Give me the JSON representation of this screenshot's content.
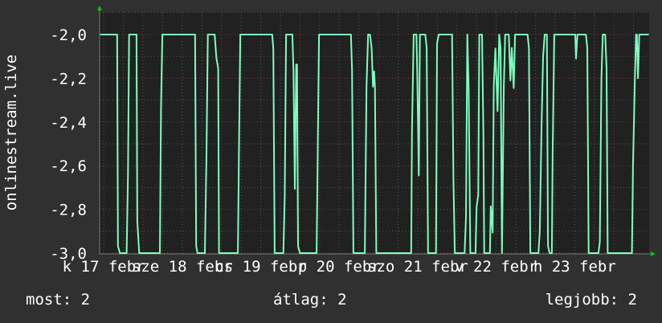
{
  "chart_data": {
    "type": "line",
    "ylabel": "onlinestream.live",
    "ylim": [
      -3.0,
      -1.92
    ],
    "yticks": [
      "-2,0",
      "-2,2",
      "-2,4",
      "-2,6",
      "-2,8",
      "-3,0"
    ],
    "ytick_values": [
      -2.0,
      -2.2,
      -2.4,
      -2.6,
      -2.8,
      -3.0
    ],
    "xlim": [
      "17 10:45",
      "24 10:50"
    ],
    "xtick_labels": [
      "k 17 febr",
      "sze 18 febr",
      "cs 19 febr",
      "p 20 febr",
      "szo 21 febr",
      "v 22 febr",
      "h 23 febr"
    ],
    "grid": true,
    "colors": {
      "line": "#7dffbe",
      "plot_bg": "#212121",
      "background": "#303030",
      "major_grid": "#8a3a3a",
      "minor_grid": "#5a5a5a",
      "axis_arrow": "#00cc00"
    },
    "series": [
      {
        "points": [
          [
            "17 11:00",
            -2
          ],
          [
            "17 16:05",
            -2
          ],
          [
            "17 16:20",
            -2.967
          ],
          [
            "17 16:55",
            -3
          ],
          [
            "17 19:00",
            -3
          ],
          [
            "17 19:25",
            -2.64
          ],
          [
            "17 19:45",
            -2
          ],
          [
            "17 22:00",
            -2
          ],
          [
            "17 22:15",
            -2.857
          ],
          [
            "17 22:50",
            -3
          ],
          [
            "18 05:10",
            -3
          ],
          [
            "18 05:30",
            -2.34
          ],
          [
            "18 05:55",
            -2
          ],
          [
            "18 15:55",
            -2
          ],
          [
            "18 16:15",
            -2.967
          ],
          [
            "18 16:40",
            -3
          ],
          [
            "18 18:55",
            -3
          ],
          [
            "18 19:25",
            -2.55
          ],
          [
            "18 19:50",
            -2
          ],
          [
            "18 21:55",
            -2
          ],
          [
            "18 22:25",
            -2.106
          ],
          [
            "18 23:00",
            -2.155
          ],
          [
            "18 23:15",
            -3
          ],
          [
            "19 05:00",
            -3
          ],
          [
            "19 05:20",
            -2.545
          ],
          [
            "19 05:45",
            -2
          ],
          [
            "19 15:30",
            -2
          ],
          [
            "19 15:50",
            -2.064
          ],
          [
            "19 16:15",
            -3
          ],
          [
            "19 18:55",
            -3
          ],
          [
            "19 19:20",
            -2.743
          ],
          [
            "19 19:45",
            -2
          ],
          [
            "19 21:40",
            -2
          ],
          [
            "19 22:00",
            -2.165
          ],
          [
            "19 22:25",
            -2.706
          ],
          [
            "19 22:50",
            -2.137
          ],
          [
            "19 23:05",
            -2.137
          ],
          [
            "19 23:25",
            -2.97
          ],
          [
            "20 00:00",
            -3
          ],
          [
            "20 05:05",
            -3
          ],
          [
            "20 05:25",
            -2.537
          ],
          [
            "20 05:50",
            -2
          ],
          [
            "20 15:35",
            -2
          ],
          [
            "20 15:55",
            -2.165
          ],
          [
            "20 16:20",
            -3
          ],
          [
            "20 19:50",
            -3
          ],
          [
            "20 20:20",
            -2.239
          ],
          [
            "20 20:50",
            -2
          ],
          [
            "20 21:25",
            -2
          ],
          [
            "20 21:55",
            -2.064
          ],
          [
            "20 22:20",
            -2.239
          ],
          [
            "20 22:40",
            -2.168
          ],
          [
            "20 22:55",
            -2.239
          ],
          [
            "20 23:20",
            -3
          ],
          [
            "21 10:00",
            -3
          ],
          [
            "21 10:15",
            -2.44
          ],
          [
            "21 10:45",
            -2
          ],
          [
            "21 11:35",
            -2
          ],
          [
            "21 11:50",
            -2.168
          ],
          [
            "21 12:20",
            -2.645
          ],
          [
            "21 12:40",
            -2
          ],
          [
            "21 14:20",
            -2
          ],
          [
            "21 14:45",
            -2.061
          ],
          [
            "21 15:10",
            -3
          ],
          [
            "21 17:35",
            -3
          ],
          [
            "21 17:55",
            -2.04
          ],
          [
            "21 18:25",
            -2
          ],
          [
            "21 22:30",
            -2
          ],
          [
            "21 22:55",
            -2.663
          ],
          [
            "21 23:20",
            -3
          ],
          [
            "22 02:20",
            -3
          ],
          [
            "22 02:45",
            -2.837
          ],
          [
            "22 03:10",
            -2
          ],
          [
            "22 03:35",
            -2.26
          ],
          [
            "22 04:05",
            -3
          ],
          [
            "22 05:40",
            -3
          ],
          [
            "22 06:00",
            -2.79
          ],
          [
            "22 06:30",
            -2.735
          ],
          [
            "22 06:50",
            -2
          ],
          [
            "22 07:40",
            -2
          ],
          [
            "22 08:05",
            -2.458
          ],
          [
            "22 08:20",
            -3
          ],
          [
            "22 10:05",
            -3
          ],
          [
            "22 10:20",
            -2.786
          ],
          [
            "22 10:55",
            -2.906
          ],
          [
            "22 11:15",
            -2.239
          ],
          [
            "22 11:45",
            -2.064
          ],
          [
            "22 12:25",
            -2.35
          ],
          [
            "22 12:55",
            -2
          ],
          [
            "22 13:20",
            -2.064
          ],
          [
            "22 13:45",
            -3
          ],
          [
            "22 14:20",
            -2.239
          ],
          [
            "22 14:45",
            -2
          ],
          [
            "22 15:50",
            -2
          ],
          [
            "22 16:20",
            -2.21
          ],
          [
            "22 16:45",
            -2.061
          ],
          [
            "22 17:20",
            -2.245
          ],
          [
            "22 17:45",
            -2
          ],
          [
            "22 21:35",
            -2
          ],
          [
            "22 22:00",
            -2.064
          ],
          [
            "22 22:25",
            -3
          ],
          [
            "23 00:55",
            -3
          ],
          [
            "23 01:20",
            -2.9
          ],
          [
            "23 01:50",
            -2.43
          ],
          [
            "23 02:20",
            -2.1
          ],
          [
            "23 02:50",
            -2
          ],
          [
            "23 03:30",
            -2
          ],
          [
            "23 03:50",
            -2.967
          ],
          [
            "23 04:20",
            -3
          ],
          [
            "23 05:00",
            -3
          ],
          [
            "23 05:15",
            -2.537
          ],
          [
            "23 05:45",
            -2
          ],
          [
            "23 12:10",
            -2
          ],
          [
            "23 12:25",
            -2.11
          ],
          [
            "23 12:50",
            -2
          ],
          [
            "23 15:25",
            -2
          ],
          [
            "23 15:50",
            -2.061
          ],
          [
            "23 16:15",
            -3
          ],
          [
            "23 19:15",
            -3
          ],
          [
            "23 19:40",
            -2.95
          ],
          [
            "23 20:10",
            -2.2
          ],
          [
            "23 20:35",
            -2
          ],
          [
            "23 21:20",
            -2
          ],
          [
            "23 21:45",
            -2.155
          ],
          [
            "23 22:05",
            -3
          ],
          [
            "24 05:30",
            -3
          ],
          [
            "24 05:50",
            -2.6
          ],
          [
            "24 06:20",
            -2.245
          ],
          [
            "24 06:45",
            -2
          ],
          [
            "24 07:00",
            -2
          ],
          [
            "24 07:20",
            -2.2
          ],
          [
            "24 07:45",
            -2
          ],
          [
            "24 10:35",
            -2
          ]
        ]
      }
    ]
  },
  "legend": {
    "current": "most: 2",
    "average": "átlag: 2",
    "max": "legjobb: 2"
  }
}
